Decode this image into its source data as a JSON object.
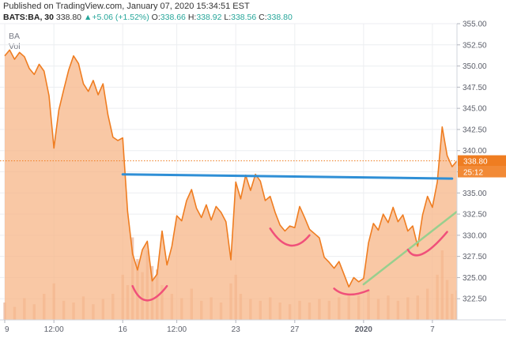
{
  "header": {
    "published": "Published on TradingView.com, January 07, 2020 15:34:51 EST",
    "symbol": "BATS:BA, 30",
    "last": "338.80",
    "change": "+5.06 (+1.52%)",
    "o_label": "O:",
    "o_value": "338.66",
    "h_label": "H:",
    "h_value": "338.92",
    "l_label": "L:",
    "l_value": "338.56",
    "c_label": "C:",
    "c_value": "338.80",
    "series_tag": "BA",
    "vol_tag": "Vol"
  },
  "chart_data": {
    "type": "area",
    "symbol": "BA",
    "interval": "30",
    "ylim": [
      320.0,
      355.0
    ],
    "y_ticks": [
      "322.50",
      "325.00",
      "327.50",
      "330.00",
      "332.50",
      "335.00",
      "337.50",
      "340.00",
      "342.50",
      "345.00",
      "347.50",
      "350.00",
      "352.50",
      "355.00"
    ],
    "x_ticks": [
      {
        "label": "9",
        "at": 0
      },
      {
        "label": "12:00",
        "at": 10
      },
      {
        "label": "16",
        "at": 24
      },
      {
        "label": "12:00",
        "at": 35
      },
      {
        "label": "23",
        "at": 47
      },
      {
        "label": "27",
        "at": 59
      },
      {
        "label": "2020",
        "at": 73
      },
      {
        "label": "7",
        "at": 87
      }
    ],
    "x_range": [
      0,
      92
    ],
    "price": [
      [
        0,
        351.2
      ],
      [
        1,
        351.9
      ],
      [
        2,
        350.8
      ],
      [
        3,
        351.6
      ],
      [
        4,
        351.1
      ],
      [
        5,
        349.7
      ],
      [
        6,
        349.0
      ],
      [
        7,
        350.2
      ],
      [
        8,
        349.4
      ],
      [
        9,
        346.5
      ],
      [
        10,
        340.3
      ],
      [
        11,
        344.8
      ],
      [
        12,
        347.2
      ],
      [
        13,
        349.5
      ],
      [
        14,
        351.2
      ],
      [
        15,
        350.3
      ],
      [
        16,
        347.9
      ],
      [
        17,
        347.0
      ],
      [
        18,
        348.3
      ],
      [
        19,
        346.6
      ],
      [
        20,
        347.9
      ],
      [
        21,
        344.2
      ],
      [
        22,
        341.6
      ],
      [
        23,
        341.2
      ],
      [
        24,
        341.5
      ],
      [
        25,
        332.8
      ],
      [
        26,
        327.8
      ],
      [
        27,
        325.9
      ],
      [
        28,
        328.3
      ],
      [
        29,
        329.3
      ],
      [
        30,
        324.6
      ],
      [
        31,
        325.4
      ],
      [
        32,
        330.5
      ],
      [
        33,
        326.5
      ],
      [
        34,
        328.7
      ],
      [
        35,
        332.3
      ],
      [
        36,
        331.7
      ],
      [
        37,
        334.1
      ],
      [
        38,
        335.4
      ],
      [
        39,
        333.2
      ],
      [
        40,
        332.1
      ],
      [
        41,
        333.6
      ],
      [
        42,
        331.8
      ],
      [
        43,
        333.4
      ],
      [
        44,
        332.7
      ],
      [
        45,
        331.6
      ],
      [
        46,
        327.1
      ],
      [
        47,
        336.3
      ],
      [
        48,
        334.3
      ],
      [
        49,
        337.1
      ],
      [
        50,
        335.3
      ],
      [
        51,
        337.2
      ],
      [
        52,
        336.4
      ],
      [
        53,
        334.1
      ],
      [
        54,
        334.6
      ],
      [
        55,
        332.7
      ],
      [
        56,
        331.2
      ],
      [
        57,
        330.5
      ],
      [
        58,
        331.1
      ],
      [
        59,
        330.9
      ],
      [
        60,
        333.4
      ],
      [
        61,
        332.1
      ],
      [
        62,
        330.7
      ],
      [
        63,
        330.2
      ],
      [
        64,
        329.7
      ],
      [
        65,
        327.4
      ],
      [
        66,
        326.8
      ],
      [
        67,
        326.1
      ],
      [
        68,
        326.9
      ],
      [
        69,
        325.4
      ],
      [
        70,
        323.9
      ],
      [
        71,
        325.0
      ],
      [
        72,
        324.5
      ],
      [
        73,
        324.9
      ],
      [
        74,
        329.1
      ],
      [
        75,
        331.4
      ],
      [
        76,
        330.6
      ],
      [
        77,
        332.5
      ],
      [
        78,
        331.5
      ],
      [
        79,
        333.3
      ],
      [
        80,
        331.6
      ],
      [
        81,
        332.4
      ],
      [
        82,
        330.5
      ],
      [
        83,
        331.1
      ],
      [
        84,
        328.7
      ],
      [
        85,
        332.4
      ],
      [
        86,
        334.6
      ],
      [
        87,
        333.3
      ],
      [
        88,
        336.3
      ],
      [
        89,
        342.8
      ],
      [
        90,
        339.4
      ],
      [
        91,
        338.1
      ],
      [
        92,
        338.8
      ]
    ],
    "volume": [
      [
        0,
        0.2
      ],
      [
        2,
        0.15
      ],
      [
        4,
        0.25
      ],
      [
        6,
        0.18
      ],
      [
        8,
        0.3
      ],
      [
        10,
        0.42
      ],
      [
        12,
        0.22
      ],
      [
        14,
        0.2
      ],
      [
        16,
        0.27
      ],
      [
        18,
        0.18
      ],
      [
        20,
        0.24
      ],
      [
        22,
        0.3
      ],
      [
        24,
        0.52
      ],
      [
        25,
        0.4
      ],
      [
        26,
        0.95
      ],
      [
        27,
        0.7
      ],
      [
        28,
        0.55
      ],
      [
        29,
        0.8
      ],
      [
        30,
        0.62
      ],
      [
        31,
        0.58
      ],
      [
        32,
        0.4
      ],
      [
        34,
        0.3
      ],
      [
        36,
        0.25
      ],
      [
        38,
        0.36
      ],
      [
        40,
        0.22
      ],
      [
        42,
        0.26
      ],
      [
        44,
        0.2
      ],
      [
        46,
        0.42
      ],
      [
        47,
        0.52
      ],
      [
        48,
        0.3
      ],
      [
        50,
        0.24
      ],
      [
        52,
        0.22
      ],
      [
        54,
        0.26
      ],
      [
        56,
        0.2
      ],
      [
        58,
        0.18
      ],
      [
        60,
        0.22
      ],
      [
        62,
        0.2
      ],
      [
        64,
        0.24
      ],
      [
        66,
        0.22
      ],
      [
        68,
        0.26
      ],
      [
        70,
        0.3
      ],
      [
        72,
        0.28
      ],
      [
        74,
        0.34
      ],
      [
        76,
        0.24
      ],
      [
        78,
        0.28
      ],
      [
        80,
        0.22
      ],
      [
        82,
        0.26
      ],
      [
        84,
        0.28
      ],
      [
        86,
        0.36
      ],
      [
        88,
        0.52
      ],
      [
        89,
        0.8
      ],
      [
        90,
        0.46
      ],
      [
        91,
        0.3
      ],
      [
        92,
        0.34
      ]
    ],
    "last_price": 338.8,
    "price_label": "338.80",
    "countdown_label": "25:12",
    "annotations": [
      {
        "type": "line",
        "color": "#2f8fd6",
        "from": [
          24,
          337.2
        ],
        "to": [
          91,
          336.7
        ]
      },
      {
        "type": "line",
        "color": "#98cf8e",
        "from": [
          73,
          324.2
        ],
        "to": [
          92,
          332.8
        ]
      },
      {
        "type": "arc",
        "color": "#f0507a",
        "from": [
          26,
          324.0
        ],
        "mid": [
          29,
          322.3
        ],
        "to": [
          33,
          324.0
        ]
      },
      {
        "type": "arc",
        "color": "#f0507a",
        "from": [
          54,
          330.8
        ],
        "mid": [
          58,
          328.8
        ],
        "to": [
          62,
          330.0
        ]
      },
      {
        "type": "arc",
        "color": "#f0507a",
        "from": [
          67,
          323.7
        ],
        "mid": [
          70,
          323.0
        ],
        "to": [
          74,
          323.5
        ]
      },
      {
        "type": "arc",
        "color": "#f0507a",
        "from": [
          82,
          328.3
        ],
        "mid": [
          85,
          327.8
        ],
        "to": [
          90,
          330.4
        ]
      }
    ],
    "colors": {
      "line": "#ef7d21",
      "fill": "#f7b98c",
      "volume": "#e39a77",
      "last_label_bg": "#ef7d21",
      "countdown_bg": "#f28a36",
      "grid": "#eceef1"
    }
  }
}
